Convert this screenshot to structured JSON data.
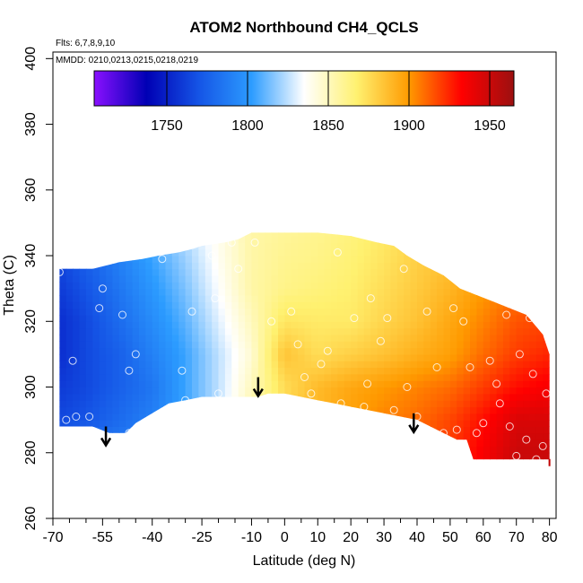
{
  "chart_data": {
    "type": "heatmap",
    "title": "ATOM2 Northbound CH4_QCLS",
    "flights_label": "Flts: 6,7,8,9,10",
    "dates_label": "MMDD: 0210,0213,0215,0218,0219",
    "xlabel": "Latitude (deg N)",
    "ylabel": "Theta (C)",
    "xlim": [
      -70,
      82
    ],
    "ylim": [
      260,
      402
    ],
    "x_ticks": [
      -70,
      -55,
      -40,
      -25,
      -10,
      0,
      10,
      20,
      30,
      40,
      50,
      60,
      70,
      80
    ],
    "x_minor_ticks": [
      -65,
      -60,
      -50,
      -45,
      -35,
      -30,
      -20,
      -15,
      -5,
      5,
      15,
      25,
      35,
      45,
      55,
      65,
      75
    ],
    "y_ticks": [
      260,
      280,
      300,
      320,
      340,
      360,
      380,
      400
    ],
    "colorbar": {
      "min": 1705,
      "max": 1965,
      "ticks": [
        1750,
        1800,
        1850,
        1900,
        1950
      ],
      "colors": [
        "#8a10ff",
        "#0000b4",
        "#1555e6",
        "#2c9cff",
        "#ffffff",
        "#fff170",
        "#ff9a00",
        "#ff0000",
        "#9c1010"
      ]
    },
    "value_field": {
      "lat": [
        -68,
        -60,
        -50,
        -40,
        -30,
        -20,
        -10,
        0,
        10,
        20,
        30,
        40,
        50,
        60,
        70,
        80
      ],
      "theta": [
        280,
        290,
        300,
        310,
        320,
        330,
        340,
        350
      ],
      "ch4": [
        [
          1790,
          1790,
          1790,
          1795,
          1810,
          1830,
          1850,
          1870,
          1885,
          1895,
          1905,
          1912,
          1920,
          1935,
          1950,
          1950
        ],
        [
          1765,
          1770,
          1780,
          1790,
          1805,
          1825,
          1855,
          1880,
          1890,
          1898,
          1905,
          1910,
          1918,
          1930,
          1945,
          1945
        ],
        [
          1760,
          1765,
          1775,
          1785,
          1805,
          1825,
          1850,
          1875,
          1888,
          1895,
          1900,
          1905,
          1910,
          1920,
          1930,
          1935
        ],
        [
          1755,
          1765,
          1775,
          1790,
          1805,
          1825,
          1845,
          1885,
          1875,
          1880,
          1885,
          1892,
          1898,
          1910,
          1920,
          1925
        ],
        [
          1755,
          1765,
          1780,
          1795,
          1810,
          1830,
          1850,
          1872,
          1870,
          1870,
          1878,
          1885,
          1895,
          1905,
          1915,
          1918
        ],
        [
          1760,
          1770,
          1785,
          1800,
          1815,
          1835,
          1855,
          1862,
          1865,
          1868,
          1875,
          1882,
          1890,
          1900,
          1908,
          1910
        ],
        [
          1765,
          1775,
          1790,
          1805,
          1820,
          1838,
          1855,
          1860,
          1862,
          1866,
          1872,
          1880,
          1885,
          1895,
          1900,
          1905
        ],
        [
          1770,
          1780,
          1795,
          1810,
          1825,
          1840,
          1855,
          1858,
          1860,
          1864,
          1870,
          1876,
          1882,
          1890,
          1895,
          1900
        ]
      ]
    },
    "region_top": {
      "lat": [
        -68,
        -58,
        -50,
        -43,
        -38,
        -32,
        -28,
        -25,
        -18,
        -14,
        -10,
        0,
        10,
        20,
        28,
        33,
        37,
        42,
        48,
        53,
        58,
        63,
        68,
        73,
        78,
        80
      ],
      "theta": [
        336,
        336,
        338,
        339,
        340,
        341,
        342,
        343,
        344,
        345,
        347,
        347,
        347,
        346,
        344,
        343,
        340,
        337,
        334,
        330,
        328,
        326,
        324,
        322,
        316,
        310
      ]
    },
    "region_bottom": {
      "lat": [
        -68,
        -58,
        -53,
        -48,
        -45,
        -40,
        -35,
        -30,
        -25,
        -20,
        -15,
        -10,
        -8,
        -5,
        0,
        5,
        10,
        15,
        20,
        30,
        40,
        50,
        52,
        55,
        57,
        60,
        65,
        70,
        75,
        80
      ],
      "theta": [
        288,
        288,
        286,
        286,
        289,
        292,
        295,
        296,
        297,
        297,
        297,
        297,
        297,
        298,
        298,
        297,
        296,
        295,
        294,
        292,
        290,
        285,
        284,
        284,
        278,
        278,
        278,
        278,
        278,
        278
      ]
    },
    "points": [
      {
        "lat": -68,
        "theta": 335
      },
      {
        "lat": -66,
        "theta": 290
      },
      {
        "lat": -63,
        "theta": 291
      },
      {
        "lat": -64,
        "theta": 308
      },
      {
        "lat": -59,
        "theta": 291
      },
      {
        "lat": -55,
        "theta": 330
      },
      {
        "lat": -56,
        "theta": 324
      },
      {
        "lat": -49,
        "theta": 322
      },
      {
        "lat": -47,
        "theta": 305
      },
      {
        "lat": -45,
        "theta": 310
      },
      {
        "lat": -47,
        "theta": 286
      },
      {
        "lat": -37,
        "theta": 339
      },
      {
        "lat": -31,
        "theta": 305
      },
      {
        "lat": -30,
        "theta": 296
      },
      {
        "lat": -28,
        "theta": 323
      },
      {
        "lat": -22,
        "theta": 340
      },
      {
        "lat": -21,
        "theta": 327
      },
      {
        "lat": -20,
        "theta": 298
      },
      {
        "lat": -16,
        "theta": 344
      },
      {
        "lat": -14,
        "theta": 336
      },
      {
        "lat": -9,
        "theta": 344
      },
      {
        "lat": -4,
        "theta": 320
      },
      {
        "lat": 2,
        "theta": 323
      },
      {
        "lat": 4,
        "theta": 313
      },
      {
        "lat": 6,
        "theta": 303
      },
      {
        "lat": 8,
        "theta": 298
      },
      {
        "lat": 11,
        "theta": 307
      },
      {
        "lat": 13,
        "theta": 311
      },
      {
        "lat": 16,
        "theta": 341
      },
      {
        "lat": 17,
        "theta": 295
      },
      {
        "lat": 21,
        "theta": 321
      },
      {
        "lat": 24,
        "theta": 294
      },
      {
        "lat": 25,
        "theta": 301
      },
      {
        "lat": 26,
        "theta": 327
      },
      {
        "lat": 29,
        "theta": 314
      },
      {
        "lat": 31,
        "theta": 321
      },
      {
        "lat": 33,
        "theta": 293
      },
      {
        "lat": 36,
        "theta": 336
      },
      {
        "lat": 37,
        "theta": 300
      },
      {
        "lat": 40,
        "theta": 291
      },
      {
        "lat": 43,
        "theta": 323
      },
      {
        "lat": 46,
        "theta": 306
      },
      {
        "lat": 48,
        "theta": 286
      },
      {
        "lat": 51,
        "theta": 324
      },
      {
        "lat": 52,
        "theta": 287
      },
      {
        "lat": 54,
        "theta": 320
      },
      {
        "lat": 56,
        "theta": 306
      },
      {
        "lat": 58,
        "theta": 286
      },
      {
        "lat": 60,
        "theta": 289
      },
      {
        "lat": 62,
        "theta": 308
      },
      {
        "lat": 64,
        "theta": 301
      },
      {
        "lat": 65,
        "theta": 295
      },
      {
        "lat": 67,
        "theta": 322
      },
      {
        "lat": 68,
        "theta": 288
      },
      {
        "lat": 70,
        "theta": 279
      },
      {
        "lat": 71,
        "theta": 310
      },
      {
        "lat": 73,
        "theta": 284
      },
      {
        "lat": 74,
        "theta": 321
      },
      {
        "lat": 75,
        "theta": 304
      },
      {
        "lat": 76,
        "theta": 278
      },
      {
        "lat": 78,
        "theta": 282
      },
      {
        "lat": 79,
        "theta": 298
      }
    ],
    "annotations": [
      {
        "type": "arrow-down",
        "lat": -54,
        "theta": 288
      },
      {
        "type": "arrow-down",
        "lat": -8,
        "theta": 303
      },
      {
        "type": "arrow-down",
        "lat": 39,
        "theta": 292
      },
      {
        "type": "marker",
        "lat": 80,
        "theta": 277,
        "color": "#c00000"
      }
    ]
  }
}
